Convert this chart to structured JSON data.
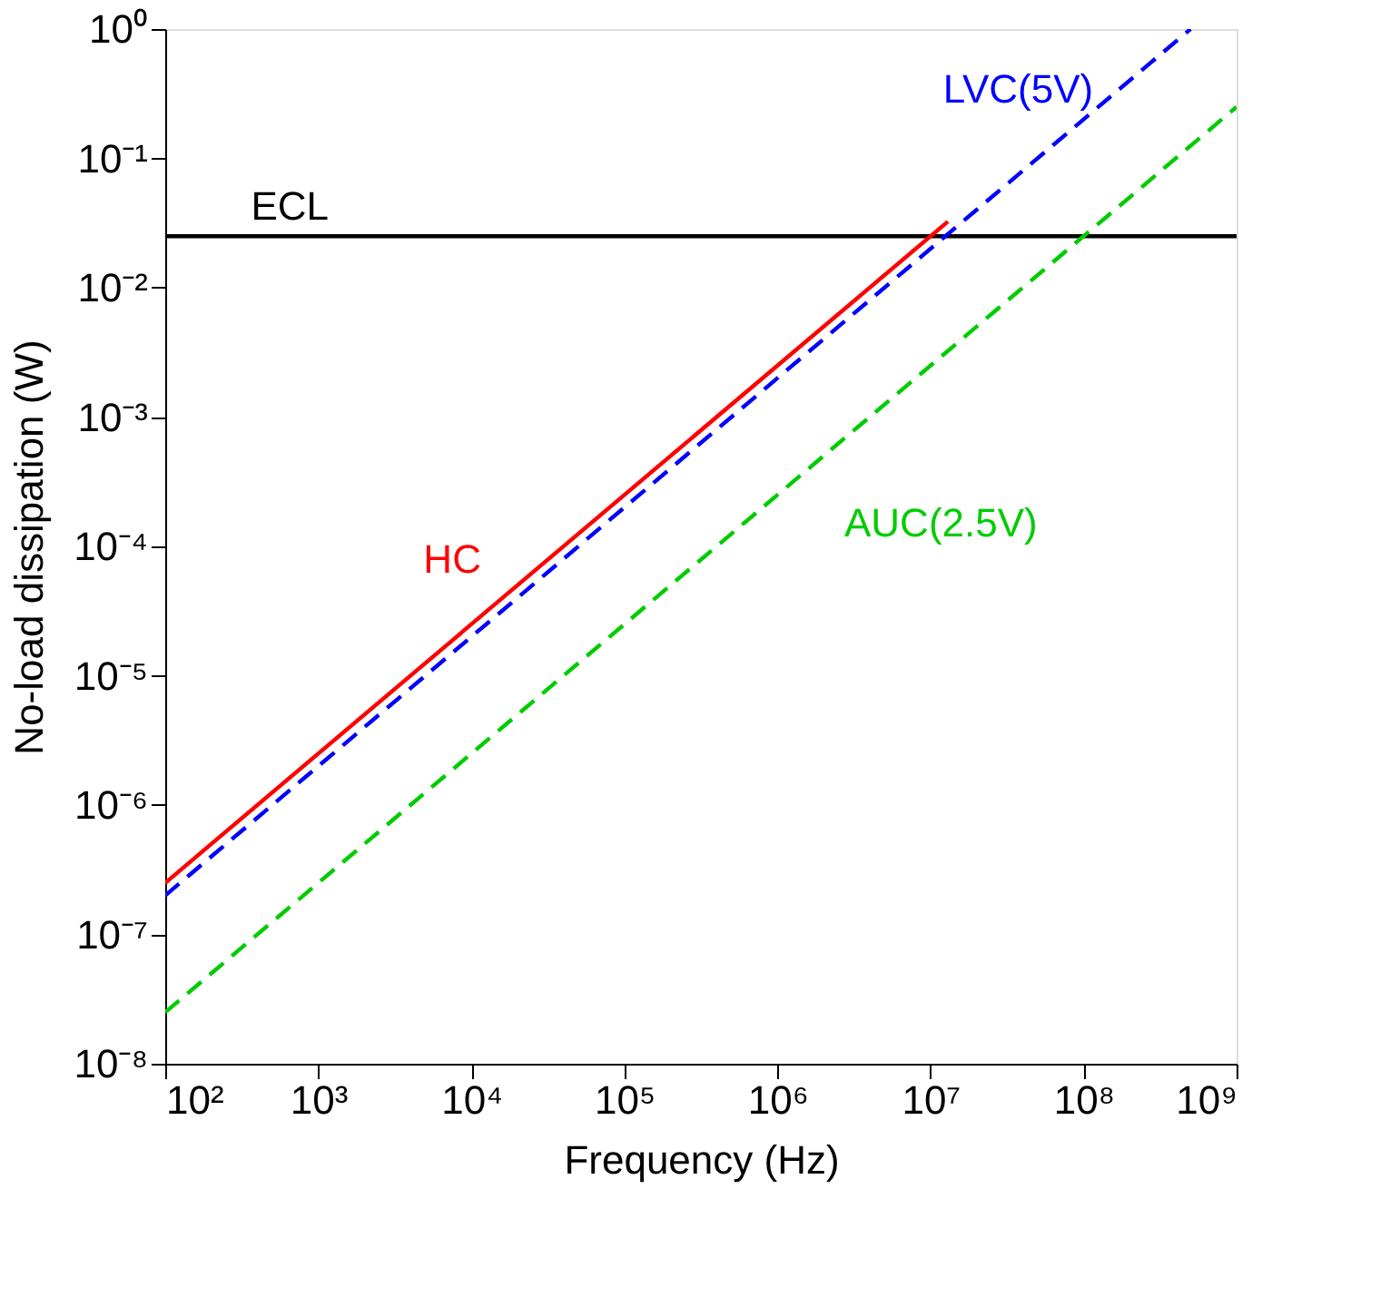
{
  "chart_data": {
    "type": "line",
    "xlabel": "Frequency (Hz)",
    "ylabel": "No-load dissipation (W)",
    "log": "xy",
    "grid": false,
    "xlim": [
      100,
      1000000000
    ],
    "ylim": [
      1e-08,
      1
    ],
    "xticks": [
      {
        "value": 100,
        "label": "10²"
      },
      {
        "value": 1000,
        "label": "10³"
      },
      {
        "value": 10000,
        "label": "10⁴"
      },
      {
        "value": 100000,
        "label": "10⁵"
      },
      {
        "value": 1000000,
        "label": "10⁶"
      },
      {
        "value": 10000000,
        "label": "10⁷"
      },
      {
        "value": 100000000,
        "label": "10⁸"
      },
      {
        "value": 1000000000,
        "label": "10⁹"
      }
    ],
    "yticks": [
      {
        "value": 1e-08,
        "label": "10⁻⁸"
      },
      {
        "value": 1e-07,
        "label": "10⁻⁷"
      },
      {
        "value": 1e-06,
        "label": "10⁻⁶"
      },
      {
        "value": 1e-05,
        "label": "10⁻⁵"
      },
      {
        "value": 0.0001,
        "label": "10⁻⁴"
      },
      {
        "value": 0.001,
        "label": "10⁻³"
      },
      {
        "value": 0.01,
        "label": "10⁻²"
      },
      {
        "value": 0.1,
        "label": "10⁻¹"
      },
      {
        "value": 1,
        "label": "10⁰"
      }
    ],
    "series": [
      {
        "name": "ECL",
        "color": "#000000",
        "line_style": "solid",
        "x": [
          100,
          1000000000
        ],
        "values": [
          0.025,
          0.025
        ]
      },
      {
        "name": "HC",
        "color": "#ff0000",
        "line_style": "solid",
        "x": [
          100,
          13000000
        ],
        "values": [
          2.5e-07,
          0.0325
        ]
      },
      {
        "name": "LVC(5V)",
        "color": "#0000ff",
        "line_style": "dashed",
        "x": [
          100,
          500000000
        ],
        "values": [
          2e-07,
          1
        ]
      },
      {
        "name": "AUC(2.5V)",
        "color": "#00cc00",
        "line_style": "dashed",
        "x": [
          100,
          1000000000
        ],
        "values": [
          2.5e-08,
          0.25
        ]
      }
    ]
  }
}
